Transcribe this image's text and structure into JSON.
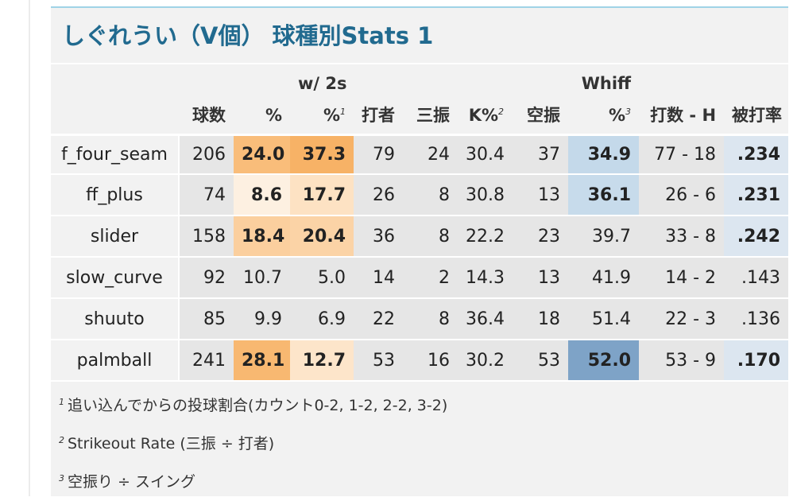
{
  "title": "しぐれうい（V個） 球種別Stats 1",
  "header": {
    "group_w2s": "w/ 2s",
    "group_whiff": "Whiff",
    "columns": [
      {
        "key": "pitch",
        "label": ""
      },
      {
        "key": "count",
        "label": "球数"
      },
      {
        "key": "pct",
        "label": "%"
      },
      {
        "key": "w2s_pct",
        "label": "%",
        "footnote": "1"
      },
      {
        "key": "batters",
        "label": "打者"
      },
      {
        "key": "k",
        "label": "三振"
      },
      {
        "key": "k_pct",
        "label": "K%",
        "footnote": "2"
      },
      {
        "key": "whiffs",
        "label": "空振"
      },
      {
        "key": "whiff_pct",
        "label": "%",
        "footnote": "3"
      },
      {
        "key": "ab_h",
        "label": "打数 - H"
      },
      {
        "key": "avg",
        "label": "被打率"
      }
    ]
  },
  "rows": [
    {
      "pitch": "f_four_seam",
      "count": "206",
      "pct": "24.0",
      "w2s_pct": "37.3",
      "batters": "79",
      "k": "24",
      "k_pct": "30.4",
      "whiffs": "37",
      "whiff_pct": "34.9",
      "ab_h": "77 - 18",
      "avg": ".234"
    },
    {
      "pitch": "ff_plus",
      "count": "74",
      "pct": "8.6",
      "w2s_pct": "17.7",
      "batters": "26",
      "k": "8",
      "k_pct": "30.8",
      "whiffs": "13",
      "whiff_pct": "36.1",
      "ab_h": "26 - 6",
      "avg": ".231"
    },
    {
      "pitch": "slider",
      "count": "158",
      "pct": "18.4",
      "w2s_pct": "20.4",
      "batters": "36",
      "k": "8",
      "k_pct": "22.2",
      "whiffs": "23",
      "whiff_pct": "39.7",
      "ab_h": "33 - 8",
      "avg": ".242"
    },
    {
      "pitch": "slow_curve",
      "count": "92",
      "pct": "10.7",
      "w2s_pct": "5.0",
      "batters": "14",
      "k": "2",
      "k_pct": "14.3",
      "whiffs": "13",
      "whiff_pct": "41.9",
      "ab_h": "14 - 2",
      "avg": ".143"
    },
    {
      "pitch": "shuuto",
      "count": "85",
      "pct": "9.9",
      "w2s_pct": "6.9",
      "batters": "22",
      "k": "8",
      "k_pct": "36.4",
      "whiffs": "18",
      "whiff_pct": "51.4",
      "ab_h": "22 - 3",
      "avg": ".136"
    },
    {
      "pitch": "palmball",
      "count": "241",
      "pct": "28.1",
      "w2s_pct": "12.7",
      "batters": "53",
      "k": "16",
      "k_pct": "30.2",
      "whiffs": "53",
      "whiff_pct": "52.0",
      "ab_h": "53 - 9",
      "avg": ".170"
    }
  ],
  "cell_highlights": [
    {
      "pct": {
        "bg": "#f9bd7a",
        "bold": true
      },
      "w2s_pct": {
        "bg": "#f7b266",
        "bold": true
      },
      "whiff_pct": {
        "bg": "#c4d9ea",
        "bold": true
      },
      "avg": {
        "bg": "#dce6f0",
        "bold": true
      }
    },
    {
      "pct": {
        "bg": "#fdf0e1",
        "bold": true
      },
      "w2s_pct": {
        "bg": "#fde2c3",
        "bold": true
      },
      "whiff_pct": {
        "bg": "#c7dbeb",
        "bold": true
      },
      "avg": {
        "bg": "#dce6f0",
        "bold": true
      }
    },
    {
      "pct": {
        "bg": "#fbcf9e",
        "bold": true
      },
      "w2s_pct": {
        "bg": "#fbd3a6",
        "bold": true
      },
      "whiff_pct": null,
      "avg": {
        "bg": "#dce6f0",
        "bold": true
      }
    },
    {
      "pct": null,
      "w2s_pct": null,
      "whiff_pct": null,
      "avg": null
    },
    {
      "pct": null,
      "w2s_pct": null,
      "whiff_pct": null,
      "avg": null
    },
    {
      "pct": {
        "bg": "#f8b871",
        "bold": true
      },
      "w2s_pct": {
        "bg": "#fde5ca",
        "bold": true
      },
      "whiff_pct": {
        "bg": "#7ea3c7",
        "bold": true
      },
      "avg": {
        "bg": "#dce6f0",
        "bold": true
      }
    }
  ],
  "footnotes": [
    {
      "mark": "1",
      "text": "追い込んでからの投球割合(カウント0-2, 1-2, 2-2, 3-2)"
    },
    {
      "mark": "2",
      "text": "Strikeout Rate (三振 ÷ 打者)"
    },
    {
      "mark": "3",
      "text": "空振り ÷ スイング"
    }
  ]
}
